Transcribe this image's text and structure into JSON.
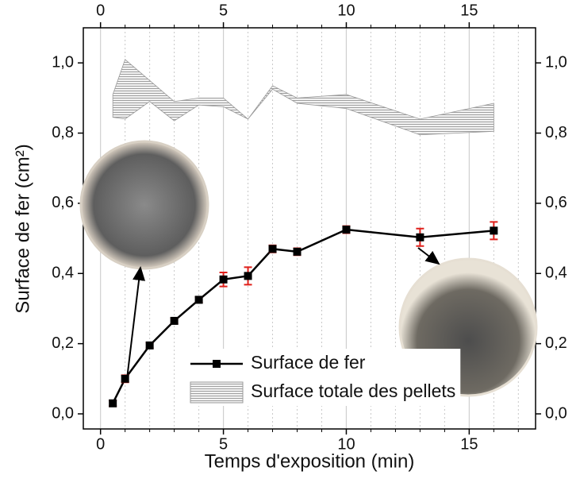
{
  "chart_data": {
    "type": "line",
    "xlabel": "Temps d'exposition (min)",
    "ylabel": "Surface de fer (cm²)",
    "xlim": [
      -0.7,
      17.7
    ],
    "ylim": [
      -0.043,
      1.1
    ],
    "xticks": [
      0,
      5,
      10,
      15
    ],
    "x_minor_ticks": [
      1,
      2,
      3,
      4,
      6,
      7,
      8,
      9,
      11,
      12,
      13,
      14,
      16,
      17
    ],
    "yticks": [
      {
        "value": 0,
        "label": "0,0"
      },
      {
        "value": 0.2,
        "label": "0,2"
      },
      {
        "value": 0.4,
        "label": "0,4"
      },
      {
        "value": 0.6,
        "label": "0,6"
      },
      {
        "value": 0.8,
        "label": "0,8"
      },
      {
        "value": 1.0,
        "label": "1,0"
      }
    ],
    "grid": true,
    "legend": "bottom-right",
    "series": [
      {
        "name": "Surface de fer",
        "color": "#000000",
        "error_color": "#e0201b",
        "x": [
          0.5,
          1,
          2,
          3,
          4,
          5,
          6,
          7,
          8,
          10,
          13,
          16
        ],
        "values": [
          0.03,
          0.1,
          0.195,
          0.265,
          0.325,
          0.383,
          0.393,
          0.47,
          0.462,
          0.525,
          0.503,
          0.522
        ],
        "error": [
          0.008,
          0.01,
          0.008,
          0.008,
          0.008,
          0.02,
          0.025,
          0.01,
          0.01,
          0.01,
          0.025,
          0.025
        ]
      },
      {
        "name": "Surface totale des pellets",
        "type": "band",
        "color": "#9a9a9a",
        "x": [
          0.5,
          1,
          2,
          3,
          4,
          5,
          6,
          7,
          8,
          10,
          13,
          16
        ],
        "upper": [
          0.91,
          1.01,
          0.95,
          0.89,
          0.9,
          0.9,
          0.84,
          0.935,
          0.9,
          0.91,
          0.84,
          0.885
        ],
        "lower": [
          0.845,
          0.84,
          0.89,
          0.835,
          0.88,
          0.875,
          0.84,
          0.925,
          0.885,
          0.87,
          0.795,
          0.805
        ]
      }
    ]
  }
}
